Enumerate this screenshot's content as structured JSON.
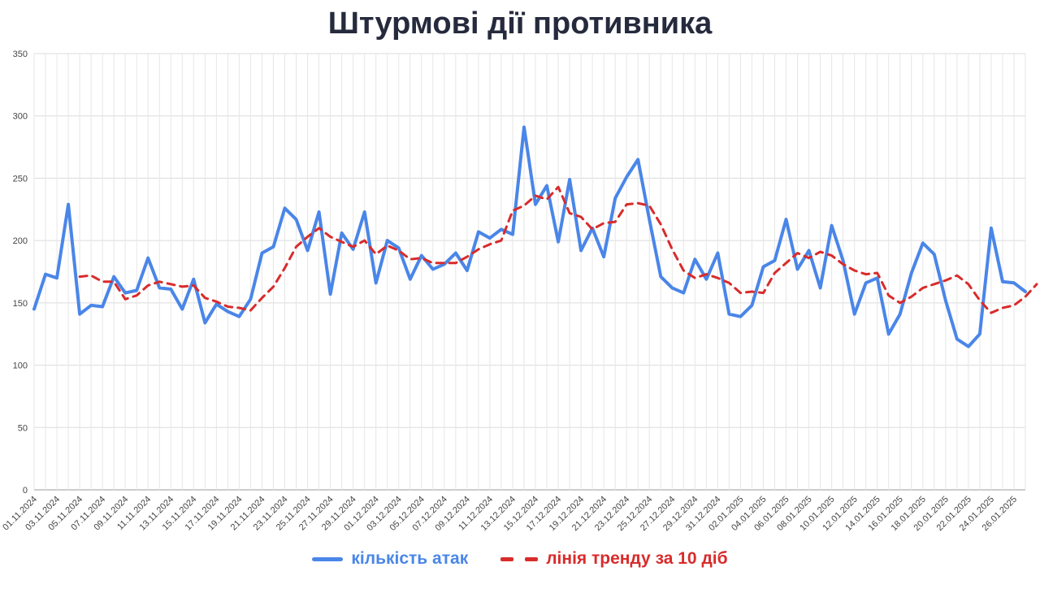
{
  "chart_data": {
    "type": "line",
    "title": "Штурмові дії противника",
    "ylim": [
      0,
      350
    ],
    "yticks": [
      0,
      50,
      100,
      150,
      200,
      250,
      300,
      350
    ],
    "x_tick_labels": [
      "01.11.2024",
      "03.11.2024",
      "05.11.2024",
      "07.11.2024",
      "09.11.2024",
      "11.11.2024",
      "13.11.2024",
      "15.11.2024",
      "17.11.2024",
      "19.11.2024",
      "21.11.2024",
      "23.11.2024",
      "25.11.2024",
      "27.11.2024",
      "29.11.2024",
      "01.12.2024",
      "03.12.2024",
      "05.12.2024",
      "07.12.2024",
      "09.12.2024",
      "11.12.2024",
      "13.12.2024",
      "15.12.2024",
      "17.12.2024",
      "19.12.2024",
      "21.12.2024",
      "23.12.2024",
      "25.12.2024",
      "27.12.2024",
      "29.12.2024",
      "31.12.2024",
      "02.01.2025",
      "04.01.2025",
      "06.01.2025",
      "08.01.2025",
      "10.01.2025",
      "12.01.2025",
      "14.01.2025",
      "16.01.2025",
      "18.01.2025",
      "20.01.2025",
      "22.01.2025",
      "24.01.2025",
      "26.01.2025"
    ],
    "grid": true,
    "legend_position": "bottom",
    "series": [
      {
        "name": "кількість атак",
        "color": "#4a86e8",
        "style": "solid",
        "values": [
          145,
          173,
          170,
          229,
          141,
          148,
          147,
          171,
          158,
          160,
          186,
          162,
          161,
          145,
          169,
          134,
          149,
          143,
          139,
          153,
          190,
          195,
          226,
          217,
          192,
          223,
          157,
          206,
          193,
          223,
          166,
          200,
          194,
          169,
          188,
          177,
          181,
          190,
          176,
          207,
          202,
          209,
          205,
          291,
          229,
          244,
          199,
          249,
          192,
          210,
          187,
          234,
          251,
          265,
          217,
          171,
          162,
          158,
          185,
          169,
          190,
          141,
          139,
          148,
          179,
          184,
          217,
          177,
          192,
          162,
          212,
          184,
          141,
          166,
          170,
          125,
          141,
          174,
          198,
          189,
          152,
          121,
          115,
          125,
          210,
          167,
          166,
          159
        ],
        "start_x": "01.11.2024"
      },
      {
        "name": "лінія тренду за 10 діб",
        "color": "#d92b2b",
        "style": "dashed",
        "values": [
          171,
          172,
          167,
          167,
          153,
          156,
          164,
          167,
          165,
          163,
          164,
          154,
          151,
          147,
          146,
          144,
          154,
          163,
          178,
          195,
          203,
          210,
          203,
          199,
          195,
          200,
          189,
          196,
          192,
          185,
          186,
          182,
          182,
          182,
          187,
          193,
          197,
          200,
          224,
          228,
          236,
          233,
          243,
          222,
          219,
          209,
          214,
          215,
          229,
          230,
          228,
          213,
          193,
          176,
          170,
          173,
          170,
          166,
          158,
          159,
          158,
          174,
          182,
          190,
          186,
          191,
          188,
          181,
          176,
          173,
          174,
          156,
          150,
          155,
          162,
          165,
          168,
          172,
          165,
          152,
          142,
          146,
          148,
          155,
          165
        ],
        "start_x": "05.11.2024"
      }
    ]
  }
}
